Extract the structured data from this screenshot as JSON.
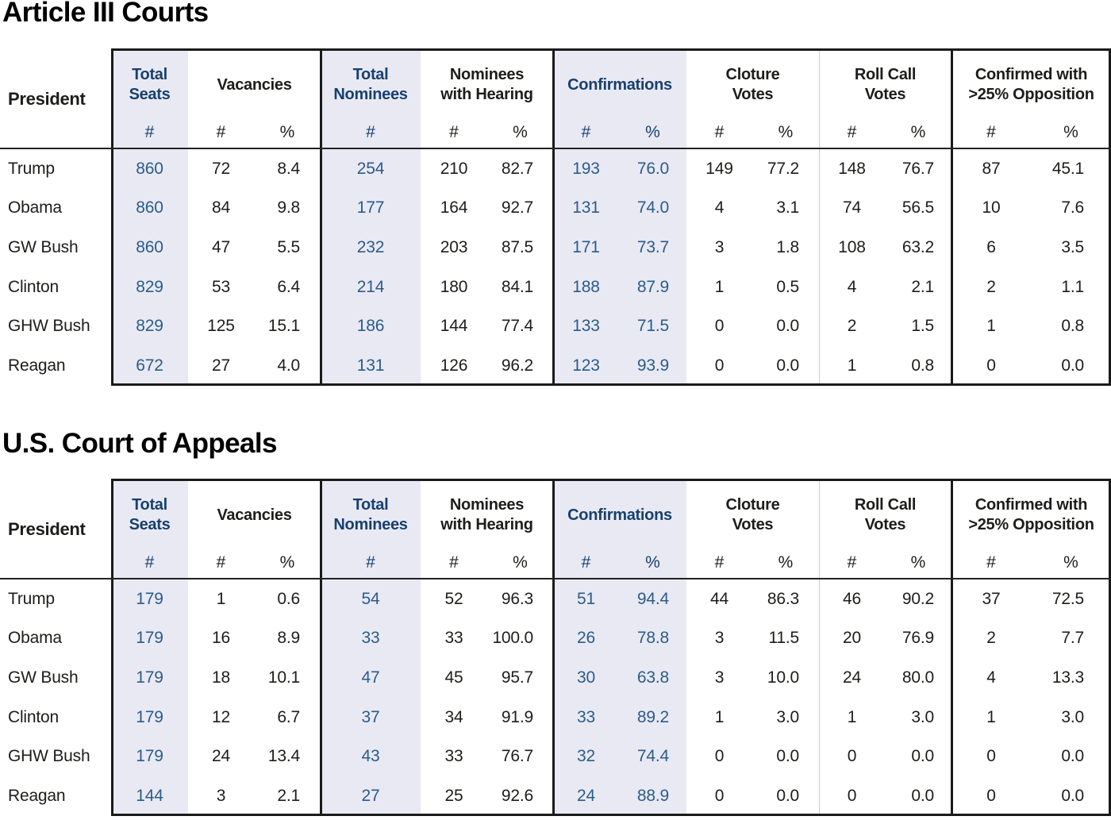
{
  "colors": {
    "header_navy": "#17406d",
    "cell_blue": "#2a5c8a",
    "text_black": "#1d1d1b",
    "lavender": "#e9e9f4",
    "thin_line": "#cccccc",
    "border_black": "#1a1a1a",
    "background": "#ffffff"
  },
  "chart_data": [
    {
      "type": "table",
      "title": "Article III Courts",
      "row_header": "President",
      "column_groups": [
        {
          "label": "Total\nSeats",
          "subs": [
            "#"
          ],
          "highlight": true
        },
        {
          "label": "Vacancies",
          "subs": [
            "#",
            "%"
          ],
          "highlight": false
        },
        {
          "label": "Total\nNominees",
          "subs": [
            "#"
          ],
          "highlight": true
        },
        {
          "label": "Nominees\nwith Hearing",
          "subs": [
            "#",
            "%"
          ],
          "highlight": false
        },
        {
          "label": "Confirmations",
          "subs": [
            "#",
            "%"
          ],
          "highlight": true
        },
        {
          "label": "Cloture\nVotes",
          "subs": [
            "#",
            "%"
          ],
          "highlight": false
        },
        {
          "label": "Roll Call\nVotes",
          "subs": [
            "#",
            "%"
          ],
          "highlight": false
        },
        {
          "label": "Confirmed with\n>25% Opposition",
          "subs": [
            "#",
            "%"
          ],
          "highlight": false
        }
      ],
      "rows": [
        {
          "president": "Trump",
          "values": [
            "860",
            "72",
            "8.4",
            "254",
            "210",
            "82.7",
            "193",
            "76.0",
            "149",
            "77.2",
            "148",
            "76.7",
            "87",
            "45.1"
          ]
        },
        {
          "president": "Obama",
          "values": [
            "860",
            "84",
            "9.8",
            "177",
            "164",
            "92.7",
            "131",
            "74.0",
            "4",
            "3.1",
            "74",
            "56.5",
            "10",
            "7.6"
          ]
        },
        {
          "president": "GW Bush",
          "values": [
            "860",
            "47",
            "5.5",
            "232",
            "203",
            "87.5",
            "171",
            "73.7",
            "3",
            "1.8",
            "108",
            "63.2",
            "6",
            "3.5"
          ]
        },
        {
          "president": "Clinton",
          "values": [
            "829",
            "53",
            "6.4",
            "214",
            "180",
            "84.1",
            "188",
            "87.9",
            "1",
            "0.5",
            "4",
            "2.1",
            "2",
            "1.1"
          ]
        },
        {
          "president": "GHW Bush",
          "values": [
            "829",
            "125",
            "15.1",
            "186",
            "144",
            "77.4",
            "133",
            "71.5",
            "0",
            "0.0",
            "2",
            "1.5",
            "1",
            "0.8"
          ]
        },
        {
          "president": "Reagan",
          "values": [
            "672",
            "27",
            "4.0",
            "131",
            "126",
            "96.2",
            "123",
            "93.9",
            "0",
            "0.0",
            "1",
            "0.8",
            "0",
            "0.0"
          ]
        }
      ]
    },
    {
      "type": "table",
      "title": "U.S. Court of Appeals",
      "row_header": "President",
      "column_groups": [
        {
          "label": "Total\nSeats",
          "subs": [
            "#"
          ],
          "highlight": true
        },
        {
          "label": "Vacancies",
          "subs": [
            "#",
            "%"
          ],
          "highlight": false
        },
        {
          "label": "Total\nNominees",
          "subs": [
            "#"
          ],
          "highlight": true
        },
        {
          "label": "Nominees\nwith Hearing",
          "subs": [
            "#",
            "%"
          ],
          "highlight": false
        },
        {
          "label": "Confirmations",
          "subs": [
            "#",
            "%"
          ],
          "highlight": true
        },
        {
          "label": "Cloture\nVotes",
          "subs": [
            "#",
            "%"
          ],
          "highlight": false
        },
        {
          "label": "Roll Call\nVotes",
          "subs": [
            "#",
            "%"
          ],
          "highlight": false
        },
        {
          "label": "Confirmed with\n>25% Opposition",
          "subs": [
            "#",
            "%"
          ],
          "highlight": false
        }
      ],
      "rows": [
        {
          "president": "Trump",
          "values": [
            "179",
            "1",
            "0.6",
            "54",
            "52",
            "96.3",
            "51",
            "94.4",
            "44",
            "86.3",
            "46",
            "90.2",
            "37",
            "72.5"
          ]
        },
        {
          "president": "Obama",
          "values": [
            "179",
            "16",
            "8.9",
            "33",
            "33",
            "100.0",
            "26",
            "78.8",
            "3",
            "11.5",
            "20",
            "76.9",
            "2",
            "7.7"
          ]
        },
        {
          "president": "GW Bush",
          "values": [
            "179",
            "18",
            "10.1",
            "47",
            "45",
            "95.7",
            "30",
            "63.8",
            "3",
            "10.0",
            "24",
            "80.0",
            "4",
            "13.3"
          ]
        },
        {
          "president": "Clinton",
          "values": [
            "179",
            "12",
            "6.7",
            "37",
            "34",
            "91.9",
            "33",
            "89.2",
            "1",
            "3.0",
            "1",
            "3.0",
            "1",
            "3.0"
          ]
        },
        {
          "president": "GHW Bush",
          "values": [
            "179",
            "24",
            "13.4",
            "43",
            "33",
            "76.7",
            "32",
            "74.4",
            "0",
            "0.0",
            "0",
            "0.0",
            "0",
            "0.0"
          ]
        },
        {
          "president": "Reagan",
          "values": [
            "144",
            "3",
            "2.1",
            "27",
            "25",
            "92.6",
            "24",
            "88.9",
            "0",
            "0.0",
            "0",
            "0.0",
            "0",
            "0.0"
          ]
        }
      ]
    }
  ]
}
